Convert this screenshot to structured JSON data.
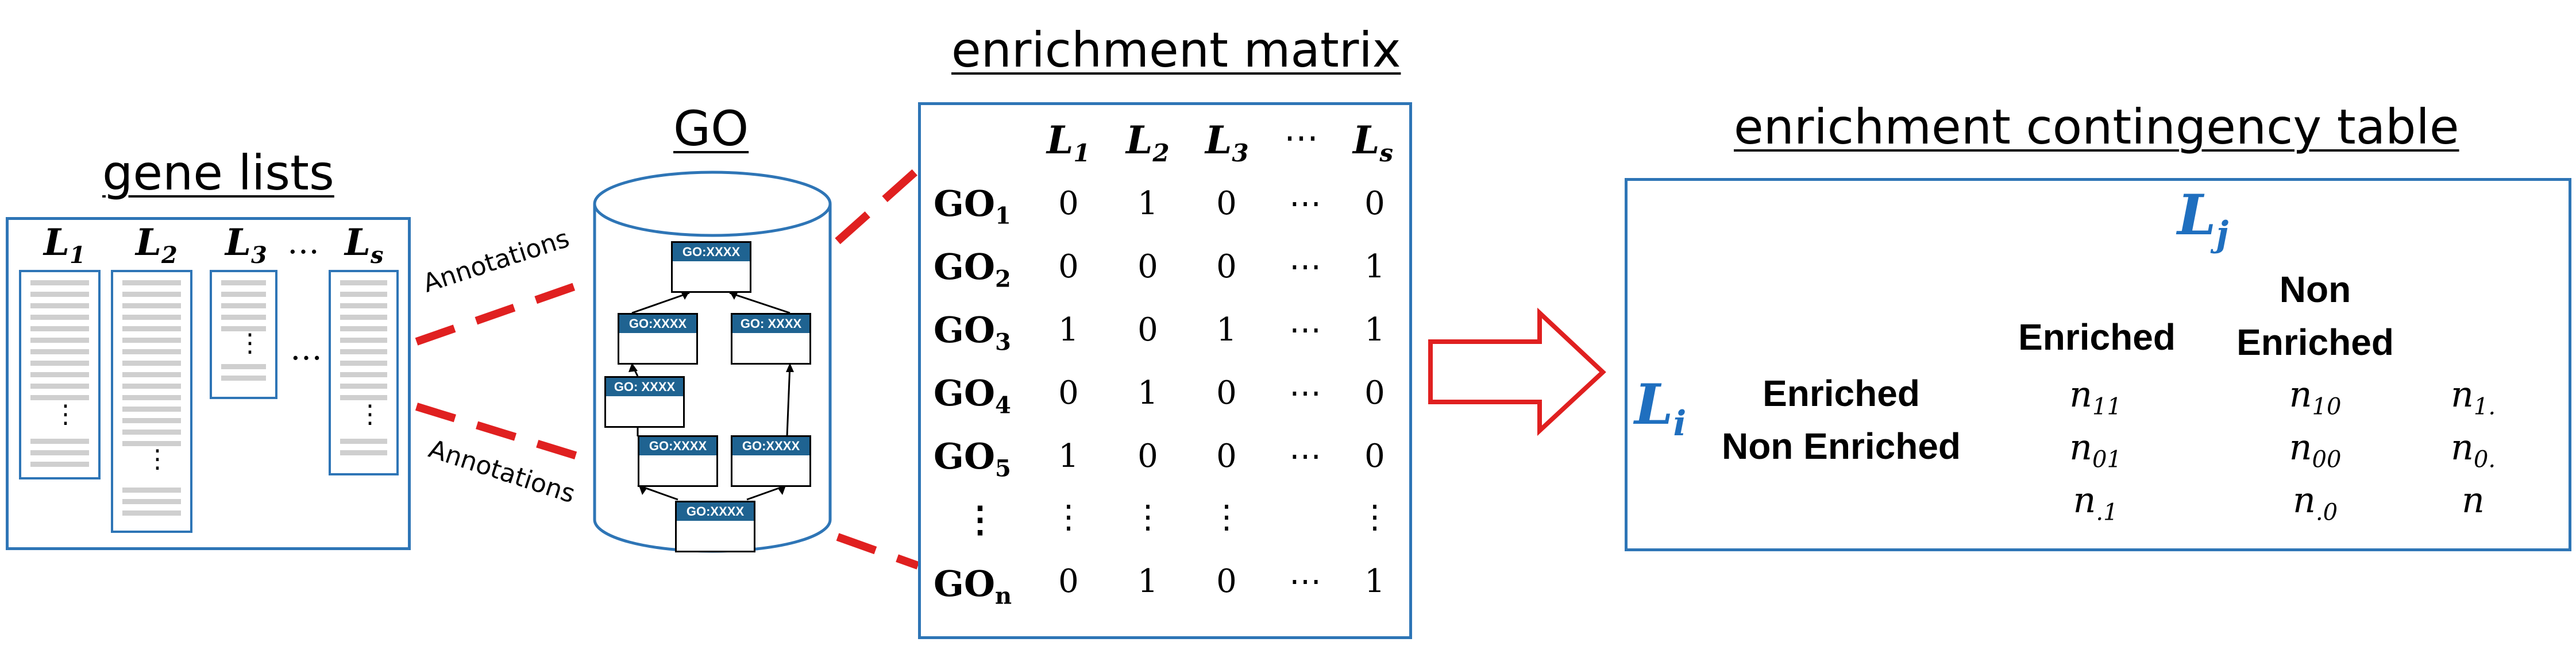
{
  "titles": {
    "gene_lists": "gene lists",
    "go": "GO",
    "enrichment_matrix": "enrichment matrix",
    "contingency_table": "enrichment contingency table"
  },
  "gene_lists": {
    "headers": [
      {
        "base": "L",
        "sub": "1"
      },
      {
        "base": "L",
        "sub": "2"
      },
      {
        "base": "L",
        "sub": "3"
      },
      {
        "base": "…",
        "sub": ""
      },
      {
        "base": "L",
        "sub": "s"
      }
    ],
    "between_ellipsis": "…",
    "vdots": "⋮"
  },
  "annotations": {
    "upper": "Annotations",
    "lower": "Annotations"
  },
  "go_nodes": [
    "GO:XXXX",
    "GO:XXXX",
    "GO: XXXX",
    "GO: XXXX",
    "GO:XXXX",
    "GO:XXXX",
    "GO:XXXX"
  ],
  "matrix": {
    "columns": [
      {
        "base": "L",
        "sub": "1"
      },
      {
        "base": "L",
        "sub": "2"
      },
      {
        "base": "L",
        "sub": "3"
      },
      {
        "base": "⋯",
        "sub": ""
      },
      {
        "base": "L",
        "sub": "s"
      }
    ],
    "rows": [
      {
        "label": "GO",
        "sub": "1",
        "values": [
          "0",
          "1",
          "0",
          "⋯",
          "0"
        ]
      },
      {
        "label": "GO",
        "sub": "2",
        "values": [
          "0",
          "0",
          "0",
          "⋯",
          "1"
        ]
      },
      {
        "label": "GO",
        "sub": "3",
        "values": [
          "1",
          "0",
          "1",
          "⋯",
          "1"
        ]
      },
      {
        "label": "GO",
        "sub": "4",
        "values": [
          "0",
          "1",
          "0",
          "⋯",
          "0"
        ]
      },
      {
        "label": "GO",
        "sub": "5",
        "values": [
          "1",
          "0",
          "0",
          "⋯",
          "0"
        ]
      },
      {
        "label": "⋮",
        "sub": "",
        "values": [
          "⋮",
          "⋮",
          "⋮",
          "",
          "⋮"
        ]
      },
      {
        "label": "GO",
        "sub": "n",
        "values": [
          "0",
          "1",
          "0",
          "⋯",
          "1"
        ]
      }
    ]
  },
  "contingency": {
    "col_var": {
      "base": "L",
      "sub": "j"
    },
    "row_var": {
      "base": "L",
      "sub": "i"
    },
    "col_headers": [
      "Enriched",
      "Non\nEnriched"
    ],
    "row_headers": [
      "Enriched",
      "Non Enriched"
    ],
    "cells": [
      [
        {
          "base": "n",
          "sub": "11"
        },
        {
          "base": "n",
          "sub": "10"
        },
        {
          "base": "n",
          "sub": "1."
        }
      ],
      [
        {
          "base": "n",
          "sub": "01"
        },
        {
          "base": "n",
          "sub": "00"
        },
        {
          "base": "n",
          "sub": "0."
        }
      ],
      [
        {
          "base": "n",
          "sub": ".1"
        },
        {
          "base": "n",
          "sub": ".0"
        },
        {
          "base": "n",
          "sub": ""
        }
      ]
    ]
  },
  "colors": {
    "accent_blue": "#2e75b6",
    "dashed_red": "#e02020",
    "go_header": "#1f6391",
    "var_blue": "#1f6fbf"
  }
}
